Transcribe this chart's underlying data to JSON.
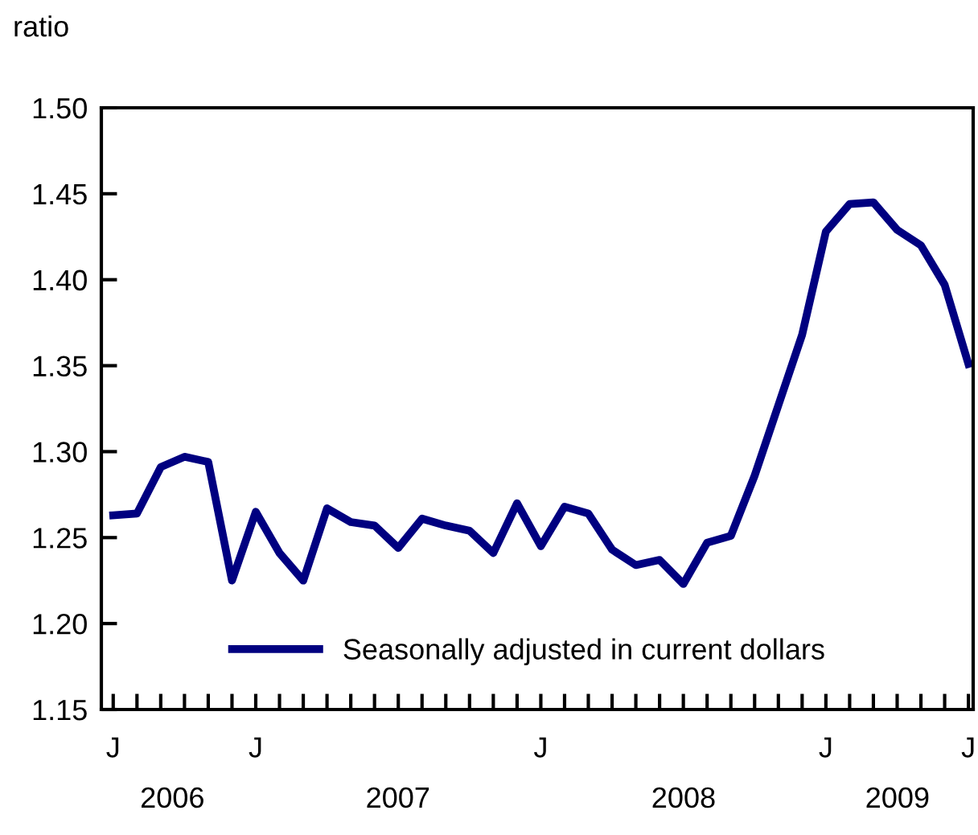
{
  "chart_data": {
    "type": "line",
    "ylabel": "ratio",
    "categories": [
      "J",
      null,
      null,
      null,
      null,
      null,
      "J",
      null,
      null,
      null,
      null,
      null,
      null,
      null,
      null,
      null,
      null,
      null,
      "J",
      null,
      null,
      null,
      null,
      null,
      null,
      null,
      null,
      null,
      null,
      null,
      "J",
      null,
      null,
      null,
      null,
      null,
      "J"
    ],
    "series": [
      {
        "name": "Seasonally adjusted in current dollars",
        "color": "#000080",
        "values": [
          1.263,
          1.264,
          1.291,
          1.297,
          1.294,
          1.225,
          1.265,
          1.241,
          1.225,
          1.267,
          1.259,
          1.257,
          1.244,
          1.261,
          1.257,
          1.254,
          1.241,
          1.27,
          1.245,
          1.268,
          1.264,
          1.243,
          1.234,
          1.237,
          1.223,
          1.247,
          1.251,
          1.286,
          1.327,
          1.368,
          1.428,
          1.444,
          1.445,
          1.429,
          1.42,
          1.397,
          1.351
        ]
      }
    ],
    "x2lim": [
      "2006-06-16",
      "2009-07-07"
    ],
    "x2ticks": [
      {
        "value": "2006-09-15",
        "label": "2006"
      },
      {
        "value": "2007-07-01",
        "label": "2007"
      },
      {
        "value": "2008-07-01",
        "label": "2008"
      },
      {
        "value": "2009-04-01",
        "label": "2009"
      }
    ],
    "ylim": [
      1.15,
      1.5
    ],
    "yticks": [
      {
        "value": 1.15,
        "label": "1.15"
      },
      {
        "value": 1.2,
        "label": "1.20"
      },
      {
        "value": 1.25,
        "label": "1.25"
      },
      {
        "value": 1.3,
        "label": "1.30"
      },
      {
        "value": 1.35,
        "label": "1.35"
      },
      {
        "value": 1.4,
        "label": "1.40"
      },
      {
        "value": 1.45,
        "label": "1.45"
      },
      {
        "value": 1.5,
        "label": "1.50"
      }
    ],
    "grid": false,
    "legend": "bottom left",
    "marker": "none",
    "line_style": "solid"
  }
}
